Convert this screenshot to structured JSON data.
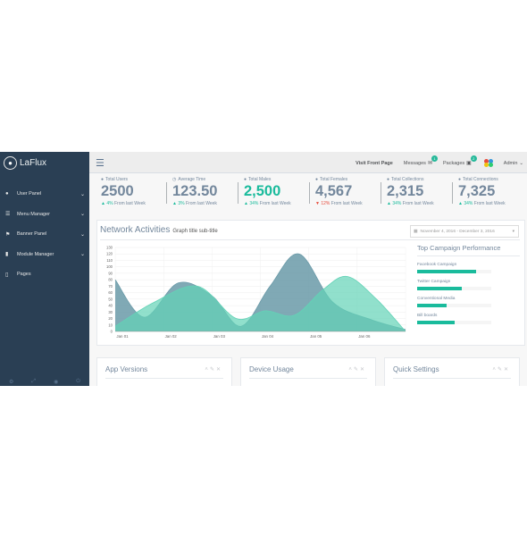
{
  "brand": {
    "name": "LaFlux",
    "icon": "paw-icon"
  },
  "sidebar": {
    "items": [
      {
        "label": "User Panel",
        "icon": "user-icon"
      },
      {
        "label": "Menu Manager",
        "icon": "list-icon"
      },
      {
        "label": "Banner Panel",
        "icon": "flag-icon"
      },
      {
        "label": "Module Manager",
        "icon": "truck-icon"
      },
      {
        "label": "Pages",
        "icon": "file-icon"
      }
    ],
    "footer_icons": [
      "gear-icon",
      "expand-icon",
      "eye-icon",
      "power-icon"
    ]
  },
  "topbar": {
    "visit_label": "Visit Front Page",
    "messages_label": "Messages",
    "messages_count": "1",
    "packages_label": "Packages",
    "packages_count": "2",
    "admin_label": "Admin"
  },
  "stats": [
    {
      "title": "Total Users",
      "icon": "user-icon",
      "value": "2500",
      "trend": "4%",
      "trend_dir": "up",
      "foot": "From last Week",
      "highlight": false
    },
    {
      "title": "Average Time",
      "icon": "clock-icon",
      "value": "123.50",
      "trend": "3%",
      "trend_dir": "up",
      "foot": "From last Week",
      "highlight": false
    },
    {
      "title": "Total Males",
      "icon": "user-icon",
      "value": "2,500",
      "trend": "34%",
      "trend_dir": "up",
      "foot": "From last Week",
      "highlight": true
    },
    {
      "title": "Total Females",
      "icon": "user-icon",
      "value": "4,567",
      "trend": "12%",
      "trend_dir": "down",
      "foot": "From last Week",
      "highlight": false
    },
    {
      "title": "Total Collections",
      "icon": "user-icon",
      "value": "2,315",
      "trend": "34%",
      "trend_dir": "up",
      "foot": "From last Week",
      "highlight": false
    },
    {
      "title": "Total Connections",
      "icon": "user-icon",
      "value": "7,325",
      "trend": "34%",
      "trend_dir": "up",
      "foot": "From last Week",
      "highlight": false
    }
  ],
  "network": {
    "title": "Network Activities",
    "subtitle": "Graph title sub-title",
    "date_range": "November 4, 2016 - December 3, 2016"
  },
  "chart_data": {
    "type": "area",
    "categories": [
      "Jan 01",
      "Jan 02",
      "Jan 03",
      "Jan 04",
      "Jan 05",
      "Jan 06"
    ],
    "y_ticks": [
      0,
      10,
      20,
      30,
      40,
      50,
      60,
      70,
      80,
      90,
      100,
      110,
      120,
      130
    ],
    "ylim": [
      0,
      130
    ],
    "grid": true,
    "series": [
      {
        "x": [
          0.0,
          0.6,
          1.3,
          2.0,
          2.6,
          3.2,
          3.8,
          4.5,
          5.3,
          6.0
        ],
        "values": [
          80,
          22,
          75,
          55,
          8,
          70,
          120,
          45,
          18,
          3
        ],
        "color": "#6a9aa8"
      },
      {
        "x": [
          0.0,
          0.8,
          1.7,
          2.5,
          3.1,
          3.7,
          4.3,
          4.8,
          5.4,
          6.0
        ],
        "values": [
          8,
          45,
          70,
          20,
          32,
          25,
          65,
          85,
          50,
          0
        ],
        "color": "#63d3b7"
      }
    ]
  },
  "campaign": {
    "title": "Top Campaign Performance",
    "items": [
      {
        "label": "Facebook Campaign",
        "percent": 80
      },
      {
        "label": "Twitter Campaign",
        "percent": 60
      },
      {
        "label": "Conventional Media",
        "percent": 40
      },
      {
        "label": "Bill boards",
        "percent": 50
      }
    ]
  },
  "panels": [
    {
      "title": "App Versions"
    },
    {
      "title": "Device Usage"
    },
    {
      "title": "Quick Settings"
    }
  ]
}
